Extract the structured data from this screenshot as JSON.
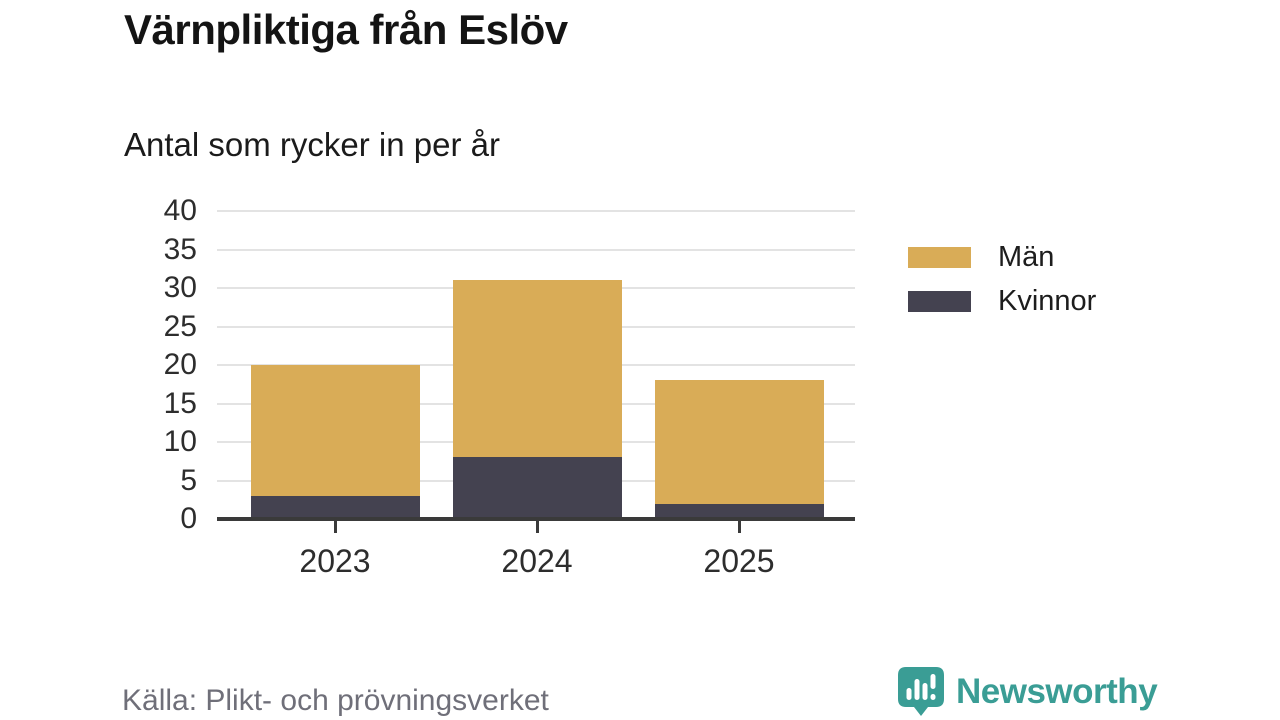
{
  "header": {
    "title": "Värnpliktiga från Eslöv",
    "subtitle": "Antal som rycker in per år"
  },
  "chart_data": {
    "type": "bar",
    "stacked": true,
    "categories": [
      "2023",
      "2024",
      "2025"
    ],
    "series": [
      {
        "name": "Män",
        "color": "#d9ac57",
        "values": [
          17,
          23,
          16
        ]
      },
      {
        "name": "Kvinnor",
        "color": "#444250",
        "values": [
          3,
          8,
          2
        ]
      }
    ],
    "totals": [
      20,
      31,
      18
    ],
    "ylim": [
      0,
      40
    ],
    "yticks": [
      0,
      5,
      10,
      15,
      20,
      25,
      30,
      35,
      40
    ],
    "grid": true,
    "legend_position": "right",
    "gridline_color": "#e3e3e3",
    "axis_color": "#3a3a3a"
  },
  "footer": {
    "source": "Källa: Plikt- och prövningsverket",
    "brand": "Newsworthy",
    "brand_color": "#3a9d95"
  }
}
